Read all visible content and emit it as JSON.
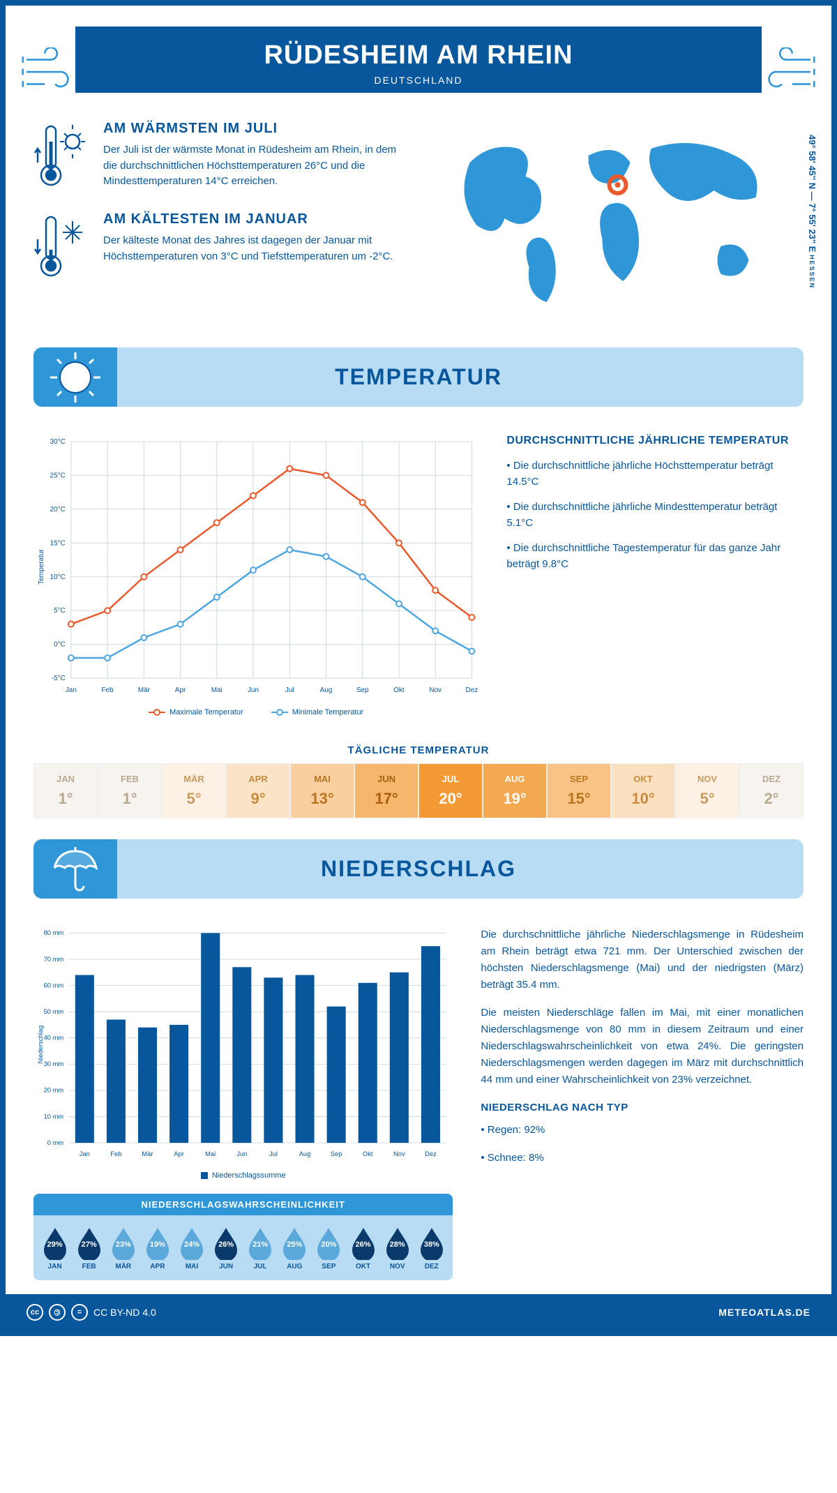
{
  "header": {
    "title": "RÜDESHEIM AM RHEIN",
    "subtitle": "DEUTSCHLAND"
  },
  "coords": {
    "line": "49° 58' 45'' N — 7° 55' 23'' E",
    "region": "HESSEN"
  },
  "facts": {
    "warm": {
      "title": "AM WÄRMSTEN IM JULI",
      "text": "Der Juli ist der wärmste Monat in Rüdesheim am Rhein, in dem die durchschnittlichen Höchsttemperaturen 26°C und die Mindesttemperaturen 14°C erreichen."
    },
    "cold": {
      "title": "AM KÄLTESTEN IM JANUAR",
      "text": "Der kälteste Monat des Jahres ist dagegen der Januar mit Höchsttemperaturen von 3°C und Tiefsttemperaturen um -2°C."
    }
  },
  "temp_section": {
    "title": "TEMPERATUR",
    "chart": {
      "type": "line",
      "months": [
        "Jan",
        "Feb",
        "Mär",
        "Apr",
        "Mai",
        "Jun",
        "Jul",
        "Aug",
        "Sep",
        "Okt",
        "Nov",
        "Dez"
      ],
      "max": [
        3,
        5,
        10,
        14,
        18,
        22,
        26,
        25,
        21,
        15,
        8,
        4
      ],
      "min": [
        -2,
        -2,
        1,
        3,
        7,
        11,
        14,
        13,
        10,
        6,
        2,
        -1
      ],
      "ylim": [
        -5,
        30
      ],
      "ytick_step": 5,
      "max_color": "#e9592b",
      "min_color": "#4da6e0",
      "grid_color": "#cfd8e0",
      "bg": "#ffffff",
      "ylabel": "Temperatur",
      "legend_max": "Maximale Temperatur",
      "legend_min": "Minimale Temperatur"
    },
    "text": {
      "heading": "DURCHSCHNITTLICHE JÄHRLICHE TEMPERATUR",
      "b1": "• Die durchschnittliche jährliche Höchsttemperatur beträgt 14.5°C",
      "b2": "• Die durchschnittliche jährliche Mindesttemperatur beträgt 5.1°C",
      "b3": "• Die durchschnittliche Tagestemperatur für das ganze Jahr beträgt 9.8°C"
    },
    "daily": {
      "title": "TÄGLICHE TEMPERATUR",
      "months": [
        "JAN",
        "FEB",
        "MÄR",
        "APR",
        "MAI",
        "JUN",
        "JUL",
        "AUG",
        "SEP",
        "OKT",
        "NOV",
        "DEZ"
      ],
      "values": [
        "1°",
        "1°",
        "5°",
        "9°",
        "13°",
        "17°",
        "20°",
        "19°",
        "15°",
        "10°",
        "5°",
        "2°"
      ],
      "colors": [
        "#f7f4f0",
        "#f7f4f0",
        "#fdf1e5",
        "#fbe3c8",
        "#f9cf9f",
        "#f6b76c",
        "#f39a35",
        "#f4a84f",
        "#f8c486",
        "#fbe0c0",
        "#fdf1e5",
        "#f7f4f0"
      ],
      "text_colors": [
        "#b8a890",
        "#b8a890",
        "#c79a5e",
        "#c78c3e",
        "#b87520",
        "#a86010",
        "#ffffff",
        "#ffffff",
        "#b87520",
        "#c78c3e",
        "#c79a5e",
        "#b8a890"
      ]
    }
  },
  "precip_section": {
    "title": "NIEDERSCHLAG",
    "chart": {
      "type": "bar",
      "months": [
        "Jan",
        "Feb",
        "Mär",
        "Apr",
        "Mai",
        "Jun",
        "Jul",
        "Aug",
        "Sep",
        "Okt",
        "Nov",
        "Dez"
      ],
      "values": [
        64,
        47,
        44,
        45,
        80,
        67,
        63,
        64,
        52,
        61,
        65,
        75
      ],
      "ylim": [
        0,
        80
      ],
      "ytick_step": 10,
      "bar_color": "#08569b",
      "grid_color": "#cfd8e0",
      "ylabel": "Niederschlag",
      "legend": "Niederschlagssumme"
    },
    "prob": {
      "title": "NIEDERSCHLAGSWAHRSCHEINLICHKEIT",
      "months": [
        "JAN",
        "FEB",
        "MÄR",
        "APR",
        "MAI",
        "JUN",
        "JUL",
        "AUG",
        "SEP",
        "OKT",
        "NOV",
        "DEZ"
      ],
      "pct": [
        "29%",
        "27%",
        "23%",
        "19%",
        "24%",
        "26%",
        "21%",
        "25%",
        "20%",
        "26%",
        "28%",
        "38%"
      ],
      "colors": [
        "#0a3a6b",
        "#0a3a6b",
        "#5ba8da",
        "#5ba8da",
        "#5ba8da",
        "#0a3a6b",
        "#5ba8da",
        "#5ba8da",
        "#5ba8da",
        "#0a3a6b",
        "#0a3a6b",
        "#0a3a6b"
      ]
    },
    "text": {
      "p1": "Die durchschnittliche jährliche Niederschlagsmenge in Rüdesheim am Rhein beträgt etwa 721 mm. Der Unterschied zwischen der höchsten Niederschlagsmenge (Mai) und der niedrigsten (März) beträgt 35.4 mm.",
      "p2": "Die meisten Niederschläge fallen im Mai, mit einer monatlichen Niederschlagsmenge von 80 mm in diesem Zeitraum und einer Niederschlagswahrscheinlichkeit von etwa 24%. Die geringsten Niederschlagsmengen werden dagegen im März mit durchschnittlich 44 mm und einer Wahrscheinlichkeit von 23% verzeichnet.",
      "type_heading": "NIEDERSCHLAG NACH TYP",
      "t1": "• Regen: 92%",
      "t2": "• Schnee: 8%"
    }
  },
  "footer": {
    "license": "CC BY-ND 4.0",
    "site": "METEOATLAS.DE"
  },
  "colors": {
    "primary": "#08569b",
    "light": "#b8dcf4",
    "mid": "#2f96d8"
  }
}
